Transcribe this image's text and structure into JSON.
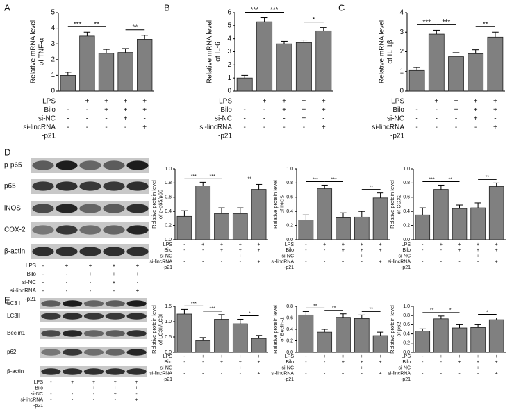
{
  "panel_labels": [
    "A",
    "B",
    "C",
    "D",
    "E"
  ],
  "chart_data": [
    {
      "type": "bar",
      "ylabel": [
        "Relative mRNA level",
        "of TNF-α"
      ],
      "values": [
        1.0,
        3.5,
        2.4,
        2.45,
        3.3
      ],
      "errors": [
        0.2,
        0.25,
        0.25,
        0.25,
        0.25
      ],
      "color": "#808080",
      "ylim": [
        0,
        5
      ],
      "yticks": [
        0,
        1,
        2,
        3,
        4,
        5
      ],
      "significance": [
        {
          "from": 0,
          "to": 1,
          "label": "***"
        },
        {
          "from": 1,
          "to": 2,
          "label": "**"
        },
        {
          "from": 3,
          "to": 4,
          "label": "**"
        }
      ],
      "conditions": [
        {
          "label": "LPS",
          "signs": [
            "-",
            "+",
            "+",
            "+",
            "+"
          ]
        },
        {
          "label": "Bilo",
          "signs": [
            "-",
            "-",
            "+",
            "+",
            "+"
          ]
        },
        {
          "label": "si-NC",
          "signs": [
            "-",
            "-",
            "-",
            "+",
            "-"
          ]
        },
        {
          "label": "si-lincRNA",
          "signs": [
            "-",
            "-",
            "-",
            "-",
            "+"
          ]
        },
        {
          "label": "-p21"
        }
      ]
    },
    {
      "type": "bar",
      "ylabel": [
        "Relative mRNA level",
        "of IL-6"
      ],
      "values": [
        1.0,
        5.3,
        3.6,
        3.7,
        4.6
      ],
      "errors": [
        0.2,
        0.3,
        0.2,
        0.2,
        0.25
      ],
      "color": "#808080",
      "ylim": [
        0,
        6
      ],
      "yticks": [
        0,
        1,
        2,
        3,
        4,
        5,
        6
      ],
      "significance": [
        {
          "from": 0,
          "to": 1,
          "label": "***"
        },
        {
          "from": 1,
          "to": 2,
          "label": "***"
        },
        {
          "from": 3,
          "to": 4,
          "label": "*"
        }
      ],
      "conditions": [
        {
          "label": "LPS",
          "signs": [
            "-",
            "+",
            "+",
            "+",
            "+"
          ]
        },
        {
          "label": "Bilo",
          "signs": [
            "-",
            "-",
            "+",
            "+",
            "+"
          ]
        },
        {
          "label": "si-NC",
          "signs": [
            "-",
            "-",
            "-",
            "+",
            "-"
          ]
        },
        {
          "label": "si-lincRNA",
          "signs": [
            "-",
            "-",
            "-",
            "-",
            "+"
          ]
        },
        {
          "label": "-p21"
        }
      ]
    },
    {
      "type": "bar",
      "ylabel": [
        "Relative mRNA level",
        "of IL-1β"
      ],
      "values": [
        1.05,
        2.9,
        1.75,
        1.9,
        2.75
      ],
      "errors": [
        0.15,
        0.2,
        0.2,
        0.2,
        0.25
      ],
      "color": "#808080",
      "ylim": [
        0,
        4
      ],
      "yticks": [
        0,
        1,
        2,
        3,
        4
      ],
      "significance": [
        {
          "from": 0,
          "to": 1,
          "label": "***"
        },
        {
          "from": 1,
          "to": 2,
          "label": "***"
        },
        {
          "from": 3,
          "to": 4,
          "label": "**"
        }
      ],
      "conditions": [
        {
          "label": "LPS",
          "signs": [
            "-",
            "+",
            "+",
            "+",
            "+"
          ]
        },
        {
          "label": "Bilo",
          "signs": [
            "-",
            "-",
            "+",
            "+",
            "+"
          ]
        },
        {
          "label": "si-NC",
          "signs": [
            "-",
            "-",
            "-",
            "+",
            "-"
          ]
        },
        {
          "label": "si-lincRNA",
          "signs": [
            "-",
            "-",
            "-",
            "-",
            "+"
          ]
        },
        {
          "label": "-p21"
        }
      ]
    },
    {
      "type": "bar",
      "ylabel": [
        "Relative protein level",
        "of p-p65/p65"
      ],
      "values": [
        0.33,
        0.76,
        0.37,
        0.37,
        0.71
      ],
      "errors": [
        0.08,
        0.05,
        0.08,
        0.08,
        0.07
      ],
      "color": "#808080",
      "ylim": [
        0,
        1
      ],
      "yticks": [
        {
          "value": 0,
          "label": "0.0"
        },
        0.2,
        0.4,
        0.6,
        0.8,
        {
          "value": 1,
          "label": "1.0"
        }
      ],
      "significance": [
        {
          "from": 0,
          "to": 1,
          "label": "***"
        },
        {
          "from": 1,
          "to": 2,
          "label": "***"
        },
        {
          "from": 3,
          "to": 4,
          "label": "**"
        }
      ],
      "conditions": [
        {
          "label": "LPS",
          "signs": [
            "-",
            "+",
            "+",
            "+",
            "+"
          ]
        },
        {
          "label": "Bilo",
          "signs": [
            "-",
            "-",
            "+",
            "+",
            "+"
          ]
        },
        {
          "label": "si-NC",
          "signs": [
            "-",
            "-",
            "-",
            "+",
            "-"
          ]
        },
        {
          "label": "si-lincRNA",
          "signs": [
            "-",
            "-",
            "-",
            "-",
            "+"
          ]
        },
        {
          "label": "-p21"
        }
      ]
    },
    {
      "type": "bar",
      "ylabel": [
        "Relative protein level",
        "of iNOS"
      ],
      "values": [
        0.28,
        0.72,
        0.31,
        0.32,
        0.59
      ],
      "errors": [
        0.07,
        0.05,
        0.07,
        0.08,
        0.07
      ],
      "color": "#808080",
      "ylim": [
        0,
        1
      ],
      "yticks": [
        {
          "value": 0,
          "label": "0.0"
        },
        0.2,
        0.4,
        0.6,
        0.8,
        {
          "value": 1,
          "label": "1.0"
        }
      ],
      "significance": [
        {
          "from": 0,
          "to": 1,
          "label": "***"
        },
        {
          "from": 1,
          "to": 2,
          "label": "***"
        },
        {
          "from": 3,
          "to": 4,
          "label": "**"
        }
      ],
      "conditions": [
        {
          "label": "LPS",
          "signs": [
            "-",
            "+",
            "+",
            "+",
            "+"
          ]
        },
        {
          "label": "Bilo",
          "signs": [
            "-",
            "-",
            "+",
            "+",
            "+"
          ]
        },
        {
          "label": "si-NC",
          "signs": [
            "-",
            "-",
            "-",
            "+",
            "-"
          ]
        },
        {
          "label": "si-lincRNA",
          "signs": [
            "-",
            "-",
            "-",
            "-",
            "+"
          ]
        },
        {
          "label": "-p21"
        }
      ]
    },
    {
      "type": "bar",
      "ylabel": [
        "Relative protein level",
        "of COX2"
      ],
      "values": [
        0.35,
        0.71,
        0.44,
        0.45,
        0.75
      ],
      "errors": [
        0.1,
        0.06,
        0.05,
        0.07,
        0.05
      ],
      "color": "#808080",
      "ylim": [
        0,
        1
      ],
      "yticks": [
        {
          "value": 0,
          "label": "0.0"
        },
        0.2,
        0.4,
        0.6,
        0.8,
        {
          "value": 1,
          "label": "1.0"
        }
      ],
      "significance": [
        {
          "from": 0,
          "to": 1,
          "label": "***"
        },
        {
          "from": 1,
          "to": 2,
          "label": "**"
        },
        {
          "from": 3,
          "to": 4,
          "label": "**"
        }
      ],
      "conditions": [
        {
          "label": "LPS",
          "signs": [
            "-",
            "+",
            "+",
            "+",
            "+"
          ]
        },
        {
          "label": "Bilo",
          "signs": [
            "-",
            "-",
            "+",
            "+",
            "+"
          ]
        },
        {
          "label": "si-NC",
          "signs": [
            "-",
            "-",
            "-",
            "+",
            "-"
          ]
        },
        {
          "label": "si-lincRNA",
          "signs": [
            "-",
            "-",
            "-",
            "-",
            "+"
          ]
        },
        {
          "label": "-p21"
        }
      ]
    },
    {
      "type": "bar",
      "ylabel": [
        "Relative protein level",
        "of LC3II/LC3I"
      ],
      "values": [
        1.25,
        0.38,
        1.08,
        0.93,
        0.45
      ],
      "errors": [
        0.15,
        0.1,
        0.15,
        0.15,
        0.1
      ],
      "color": "#808080",
      "ylim": [
        0,
        1.5
      ],
      "yticks": [
        {
          "value": 0,
          "label": "0.0"
        },
        0.5,
        {
          "value": 1,
          "label": "1.0"
        },
        1.5
      ],
      "significance": [
        {
          "from": 0,
          "to": 1,
          "label": "***"
        },
        {
          "from": 1,
          "to": 2,
          "label": "***"
        },
        {
          "from": 3,
          "to": 4,
          "label": "*"
        }
      ],
      "conditions": [
        {
          "label": "LPS",
          "signs": [
            "-",
            "+",
            "+",
            "+",
            "+"
          ]
        },
        {
          "label": "Bilo",
          "signs": [
            "-",
            "-",
            "+",
            "+",
            "+"
          ]
        },
        {
          "label": "si-NC",
          "signs": [
            "-",
            "-",
            "-",
            "+",
            "-"
          ]
        },
        {
          "label": "si-lincRNA",
          "signs": [
            "-",
            "-",
            "-",
            "-",
            "+"
          ]
        },
        {
          "label": "-p21"
        }
      ]
    },
    {
      "type": "bar",
      "ylabel": [
        "Relative protein level",
        "of Beclin-1"
      ],
      "values": [
        0.65,
        0.35,
        0.61,
        0.59,
        0.29
      ],
      "errors": [
        0.06,
        0.05,
        0.06,
        0.06,
        0.06
      ],
      "color": "#808080",
      "ylim": [
        0,
        0.8
      ],
      "yticks": [
        {
          "value": 0,
          "label": "0.0"
        },
        0.2,
        0.4,
        0.6,
        0.8
      ],
      "significance": [
        {
          "from": 0,
          "to": 1,
          "label": "**"
        },
        {
          "from": 1,
          "to": 2,
          "label": "**"
        },
        {
          "from": 3,
          "to": 4,
          "label": "**"
        }
      ],
      "conditions": [
        {
          "label": "LPS",
          "signs": [
            "-",
            "+",
            "+",
            "+",
            "+"
          ]
        },
        {
          "label": "Bilo",
          "signs": [
            "-",
            "-",
            "+",
            "+",
            "+"
          ]
        },
        {
          "label": "si-NC",
          "signs": [
            "-",
            "-",
            "-",
            "+",
            "-"
          ]
        },
        {
          "label": "si-lincRNA",
          "signs": [
            "-",
            "-",
            "-",
            "-",
            "+"
          ]
        },
        {
          "label": "-p21"
        }
      ]
    },
    {
      "type": "bar",
      "ylabel": [
        "Relative protein level",
        "of p62"
      ],
      "values": [
        0.46,
        0.73,
        0.53,
        0.54,
        0.71
      ],
      "errors": [
        0.05,
        0.06,
        0.07,
        0.06,
        0.04
      ],
      "color": "#808080",
      "ylim": [
        0,
        1
      ],
      "yticks": [
        {
          "value": 0,
          "label": "0.0"
        },
        0.2,
        0.4,
        0.6,
        0.8,
        {
          "value": 1,
          "label": "1.0"
        }
      ],
      "significance": [
        {
          "from": 0,
          "to": 1,
          "label": "**"
        },
        {
          "from": 1,
          "to": 2,
          "label": "*"
        },
        {
          "from": 3,
          "to": 4,
          "label": "*"
        }
      ],
      "conditions": [
        {
          "label": "LPS",
          "signs": [
            "-",
            "+",
            "+",
            "+",
            "+"
          ]
        },
        {
          "label": "Bilo",
          "signs": [
            "-",
            "-",
            "+",
            "+",
            "+"
          ]
        },
        {
          "label": "si-NC",
          "signs": [
            "-",
            "-",
            "-",
            "+",
            "-"
          ]
        },
        {
          "label": "si-lincRNA",
          "signs": [
            "-",
            "-",
            "-",
            "-",
            "+"
          ]
        },
        {
          "label": "-p21"
        }
      ]
    }
  ],
  "blots": [
    {
      "rows": [
        "p-p65",
        "p65",
        "iNOS",
        "COX-2",
        "β-actin"
      ],
      "conditions": [
        {
          "label": "LPS",
          "signs": [
            "-",
            "+",
            "+",
            "+",
            "+"
          ]
        },
        {
          "label": "Bilo",
          "signs": [
            "-",
            "-",
            "+",
            "+",
            "+"
          ]
        },
        {
          "label": "si-NC",
          "signs": [
            "-",
            "-",
            "-",
            "+",
            "-"
          ]
        },
        {
          "label": "si-lincRNA",
          "signs": [
            "-",
            "-",
            "-",
            "-",
            "+"
          ]
        },
        {
          "label": "-p21"
        }
      ]
    },
    {
      "rows": [
        "LC3 I",
        "LC3II",
        "Beclin1",
        "p62",
        "β-actin"
      ],
      "conditions": [
        {
          "label": "LPS",
          "signs": [
            "-",
            "+",
            "+",
            "+",
            "+"
          ]
        },
        {
          "label": "Bilo",
          "signs": [
            "-",
            "-",
            "+",
            "+",
            "+"
          ]
        },
        {
          "label": "si-NC",
          "signs": [
            "-",
            "-",
            "-",
            "+",
            "-"
          ]
        },
        {
          "label": "si-lincRNA",
          "signs": [
            "-",
            "-",
            "-",
            "-",
            "+"
          ]
        },
        {
          "label": "-p21"
        }
      ]
    }
  ]
}
